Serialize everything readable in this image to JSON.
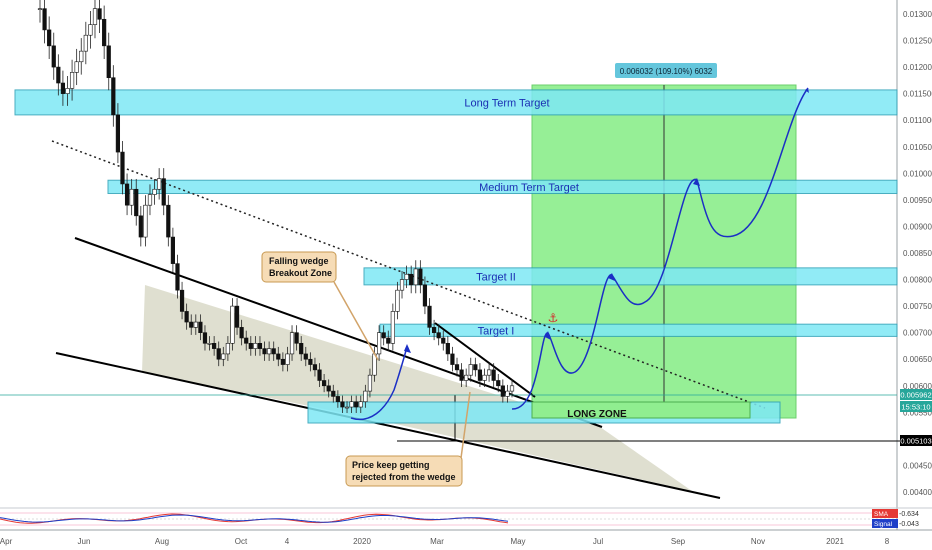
{
  "chart_data": {
    "type": "candlestick",
    "price_axis": {
      "ticks": [
        "0.013000",
        "0.012500",
        "0.012000",
        "0.011500",
        "0.011000",
        "0.010500",
        "0.010000",
        "0.009500",
        "0.009000",
        "0.008500",
        "0.008000",
        "0.007500",
        "0.007000",
        "0.006500",
        "0.006000",
        "0.005500",
        "0.005000",
        "0.004500",
        "0.004000"
      ],
      "ylim": [
        0.00385,
        0.01315
      ]
    },
    "time_axis": {
      "labels": [
        "Apr",
        "Jun",
        "Aug",
        "Oct",
        "4",
        "2020",
        "Mar",
        "May",
        "Jul",
        "Sep",
        "Nov",
        "2021",
        "8"
      ]
    },
    "zones": [
      {
        "label": "Long Term Target",
        "from": 0.0111,
        "to": 0.01157,
        "color": "#7ee8f5"
      },
      {
        "label": "Medium Term Target",
        "from": 0.00962,
        "to": 0.00987,
        "color": "#7ee8f5"
      },
      {
        "label": "Target II",
        "from": 0.0079,
        "to": 0.00822,
        "color": "#7ee8f5"
      },
      {
        "label": "Target I",
        "from": 0.00693,
        "to": 0.00716,
        "color": "#7ee8f5"
      }
    ],
    "long_zone": {
      "label": "LONG ZONE",
      "from": 0.00534,
      "to": 0.00562
    },
    "measure_label": "0.006032 (109.10%) 6032",
    "annotations": [
      {
        "text": "Falling wedge Breakout Zone"
      },
      {
        "text": "Price keep getting rejected from the wedge"
      }
    ],
    "price_tags": [
      {
        "value": "0.005962",
        "color": "#26a69a"
      },
      {
        "value": "15:53:10",
        "color": "#26a69a"
      },
      {
        "value": "0.005103",
        "color": "#000000"
      }
    ],
    "indicator": {
      "sma_label": "SMA",
      "sma_value": "-0.634",
      "signal_label": "Signal",
      "signal_value": "-0.043"
    },
    "series_close": [
      0.0131,
      0.0127,
      0.0124,
      0.012,
      0.0117,
      0.0115,
      0.0116,
      0.0119,
      0.0121,
      0.0123,
      0.0126,
      0.0128,
      0.0131,
      0.0129,
      0.0124,
      0.0118,
      0.0111,
      0.0104,
      0.0098,
      0.0094,
      0.0097,
      0.0092,
      0.0088,
      0.0094,
      0.0096,
      0.0097,
      0.0099,
      0.0094,
      0.0088,
      0.0083,
      0.0078,
      0.0074,
      0.0072,
      0.0071,
      0.0072,
      0.007,
      0.0068,
      0.0068,
      0.0067,
      0.0065,
      0.0066,
      0.0068,
      0.0075,
      0.0071,
      0.0069,
      0.0068,
      0.0067,
      0.0068,
      0.0067,
      0.0066,
      0.0067,
      0.0066,
      0.0065,
      0.0064,
      0.0066,
      0.007,
      0.0068,
      0.0066,
      0.0065,
      0.0064,
      0.0063,
      0.0061,
      0.006,
      0.0059,
      0.0058,
      0.0057,
      0.0056,
      0.0056,
      0.0057,
      0.0056,
      0.0057,
      0.0059,
      0.0062,
      0.0066,
      0.007,
      0.0069,
      0.0068,
      0.0074,
      0.0078,
      0.008,
      0.0081,
      0.0079,
      0.0082,
      0.0079,
      0.0075,
      0.0071,
      0.007,
      0.0069,
      0.0068,
      0.0066,
      0.0064,
      0.0063,
      0.0061,
      0.0062,
      0.0064,
      0.0063,
      0.0061,
      0.0062,
      0.0063,
      0.0061,
      0.006,
      0.0058,
      0.0059,
      0.006
    ]
  }
}
